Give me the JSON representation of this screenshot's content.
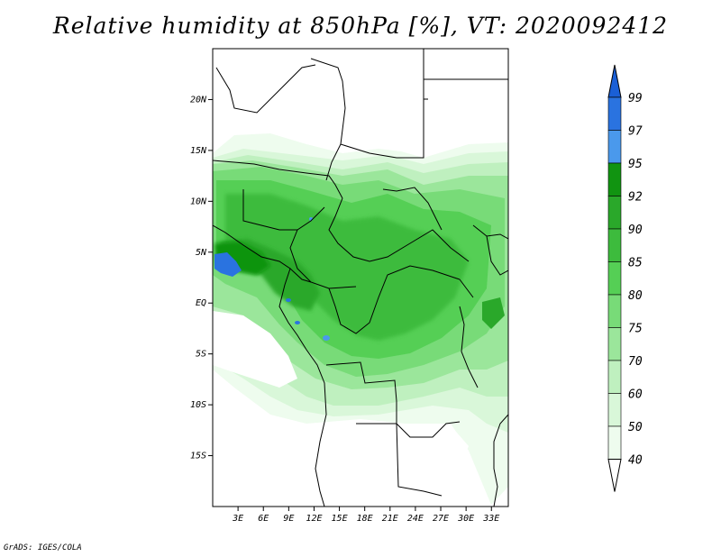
{
  "title": "Relative humidity at 850hPa [%], VT: 2020092412",
  "credit": "GrADS: IGES/COLA",
  "lat_labels": [
    "20N",
    "15N",
    "10N",
    "5N",
    "EQ",
    "5S",
    "10S",
    "15S"
  ],
  "lat_values": [
    20,
    15,
    10,
    5,
    0,
    -5,
    -10,
    -15
  ],
  "lon_labels": [
    "3E",
    "6E",
    "9E",
    "12E",
    "15E",
    "18E",
    "21E",
    "24E",
    "27E",
    "30E",
    "33E"
  ],
  "lon_values": [
    3,
    6,
    9,
    12,
    15,
    18,
    21,
    24,
    27,
    30,
    33
  ],
  "colorbar": {
    "labels": [
      "99",
      "97",
      "95",
      "92",
      "90",
      "85",
      "80",
      "75",
      "70",
      "60",
      "50",
      "40"
    ],
    "colors": [
      "#1a5fd6",
      "#2a73e0",
      "#4a99ec",
      "#119411",
      "#2aa82a",
      "#3dbb3d",
      "#55cf55",
      "#78db78",
      "#9be69b",
      "#bff0bf",
      "#d9f7d9",
      "#eefcee"
    ]
  },
  "map": {
    "lon_range": [
      0,
      35
    ],
    "lat_range": [
      -20,
      25
    ]
  }
}
